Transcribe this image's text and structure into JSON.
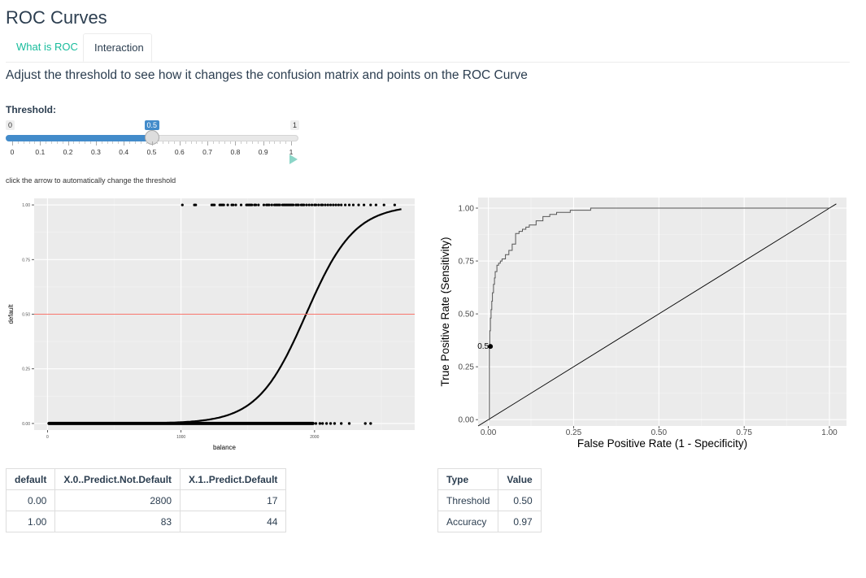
{
  "page": {
    "title": "ROC Curves"
  },
  "tabs": [
    {
      "label": "What is ROC",
      "active": false
    },
    {
      "label": "Interaction",
      "active": true
    }
  ],
  "instruction": "Adjust the threshold to see how it changes the confusion matrix and points on the ROC Curve",
  "slider": {
    "label": "Threshold:",
    "min_label": "0",
    "max_label": "1",
    "value_label": "0.5",
    "value": 0.5,
    "ticks": [
      "0",
      "0.1",
      "0.2",
      "0.3",
      "0.4",
      "0.5",
      "0.6",
      "0.7",
      "0.8",
      "0.9",
      "1"
    ],
    "play_icon": "play-icon"
  },
  "hint": "click the arrow to automatically change the threshold",
  "colors": {
    "accent": "#18bc9c",
    "slider": "#428bca",
    "threshold_line": "#f8766d",
    "panel": "#ebebeb"
  },
  "chart_data": [
    {
      "type": "scatter",
      "xlabel": "balance",
      "ylabel": "default",
      "x_ticks": [
        "0",
        "1000",
        "2000"
      ],
      "y_ticks": [
        "0.00",
        "0.25",
        "0.50",
        "0.75",
        "1.00"
      ],
      "xlim": [
        -100,
        2750
      ],
      "ylim": [
        -0.03,
        1.03
      ],
      "threshold": 0.5,
      "logistic_curve": {
        "intercept": -10.65,
        "slope": 0.0055
      },
      "points_default_1": [
        1010,
        1100,
        1110,
        1230,
        1240,
        1250,
        1290,
        1300,
        1310,
        1320,
        1350,
        1380,
        1390,
        1410,
        1450,
        1490,
        1500,
        1510,
        1520,
        1530,
        1550,
        1560,
        1580,
        1620,
        1640,
        1650,
        1660,
        1680,
        1700,
        1710,
        1720,
        1730,
        1740,
        1760,
        1770,
        1780,
        1790,
        1800,
        1810,
        1820,
        1830,
        1840,
        1860,
        1870,
        1880,
        1900,
        1910,
        1920,
        1940,
        1960,
        1980,
        2000,
        2010,
        2030,
        2050,
        2060,
        2080,
        2100,
        2120,
        2140,
        2160,
        2180,
        2200,
        2230,
        2260,
        2290,
        2330,
        2370,
        2420,
        2460,
        2520,
        2600
      ],
      "points_default_0_range": [
        0,
        2000
      ],
      "points_default_0_extra": [
        2010,
        2040,
        2060,
        2090,
        2120,
        2150,
        2200,
        2260,
        2380,
        2420
      ]
    },
    {
      "type": "line",
      "xlabel": "False Positive Rate (1 - Specificity)",
      "ylabel": "True Positive Rate (Sensitivity)",
      "x_ticks": [
        "0.00",
        "0.25",
        "0.50",
        "0.75",
        "1.00"
      ],
      "y_ticks": [
        "0.00",
        "0.25",
        "0.50",
        "0.75",
        "1.00"
      ],
      "xlim": [
        -0.03,
        1.05
      ],
      "ylim": [
        -0.03,
        1.05
      ],
      "roc_x": [
        0.0,
        0.003,
        0.004,
        0.006,
        0.008,
        0.01,
        0.012,
        0.015,
        0.018,
        0.02,
        0.025,
        0.03,
        0.035,
        0.04,
        0.05,
        0.06,
        0.07,
        0.08,
        0.09,
        0.1,
        0.11,
        0.12,
        0.14,
        0.16,
        0.18,
        0.2,
        0.22,
        0.24,
        0.26,
        0.3,
        0.35,
        0.4,
        0.45,
        0.5,
        0.6,
        0.7,
        0.8,
        0.9,
        1.0
      ],
      "roc_y": [
        0.0,
        0.34,
        0.42,
        0.48,
        0.52,
        0.56,
        0.6,
        0.64,
        0.67,
        0.7,
        0.73,
        0.74,
        0.75,
        0.76,
        0.78,
        0.8,
        0.83,
        0.88,
        0.89,
        0.9,
        0.91,
        0.92,
        0.94,
        0.96,
        0.97,
        0.98,
        0.98,
        0.99,
        0.99,
        1.0,
        1.0,
        1.0,
        1.0,
        1.0,
        1.0,
        1.0,
        1.0,
        1.0,
        1.0
      ],
      "current_point": {
        "x": 0.006,
        "y": 0.346,
        "label": "0.5"
      }
    }
  ],
  "confusion": {
    "headers": [
      "default",
      "X.0..Predict.Not.Default",
      "X.1..Predict.Default"
    ],
    "rows": [
      [
        "0.00",
        "2800",
        "17"
      ],
      [
        "1.00",
        "83",
        "44"
      ]
    ]
  },
  "stats": {
    "headers": [
      "Type",
      "Value"
    ],
    "rows": [
      [
        "Threshold",
        "0.50"
      ],
      [
        "Accuracy",
        "0.97"
      ]
    ]
  }
}
